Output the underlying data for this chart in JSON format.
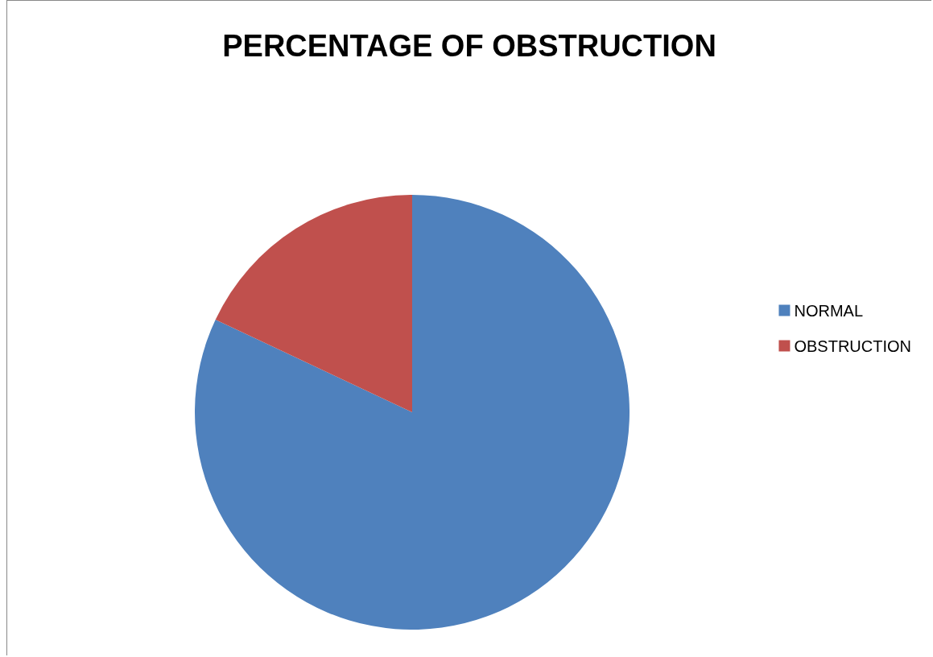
{
  "chart_data": {
    "type": "pie",
    "title": "PERCENTAGE OF OBSTRUCTION",
    "categories": [
      "NORMAL",
      "OBSTRUCTION"
    ],
    "values": [
      82,
      18
    ],
    "colors": [
      "#4f81bd",
      "#c0504d"
    ],
    "legend": "right"
  }
}
